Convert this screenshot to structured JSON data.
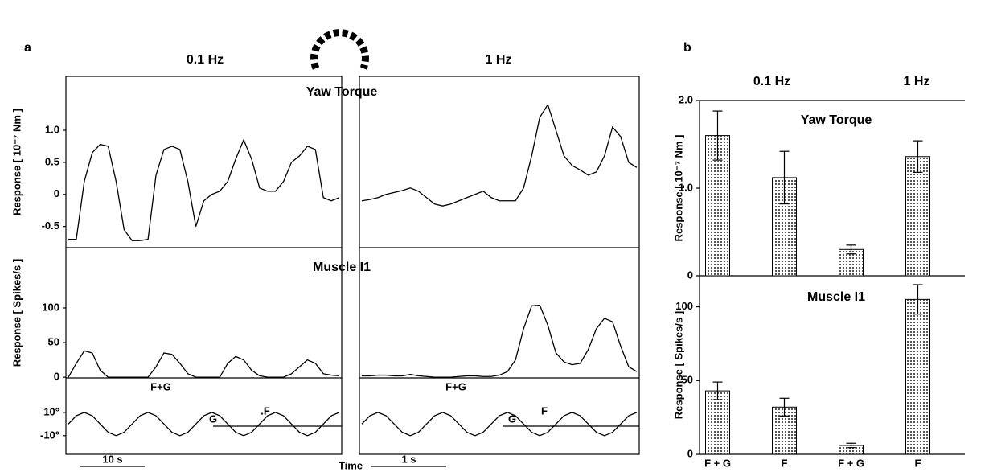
{
  "panels": [
    {
      "label": "a",
      "column_titles": [
        "0.1 Hz",
        "1 Hz"
      ],
      "xlabel": "Time"
    },
    {
      "label": "b",
      "column_titles": [
        "0.1 Hz",
        "1 Hz"
      ]
    }
  ],
  "chart_data": [
    {
      "type": "line",
      "title": "Yaw Torque",
      "ylabel": "Response [ 10⁻⁷ Nm ]",
      "ylim": [
        -0.83,
        1.84
      ],
      "yticks": [
        {
          "value": 1,
          "label": "1.0"
        },
        0.5,
        0,
        -0.5
      ],
      "series": [
        {
          "color": "#000000",
          "values": [
            -0.7,
            -0.7,
            0.2,
            0.65,
            0.78,
            0.75,
            0.2,
            -0.55,
            -0.72,
            -0.72,
            -0.7,
            0.3,
            0.7,
            0.75,
            0.7,
            0.2,
            -0.5,
            -0.1,
            0,
            0.05,
            0.2,
            0.55,
            0.85,
            0.55,
            0.1,
            0.05,
            0.05,
            0.2,
            0.5,
            0.6,
            0.75,
            0.7,
            -0.05,
            -0.1,
            -0.05
          ]
        }
      ]
    },
    {
      "type": "line",
      "ylim": [
        -0.83,
        1.84
      ],
      "series": [
        {
          "color": "#000000",
          "values": [
            -0.1,
            -0.08,
            -0.05,
            0,
            0.03,
            0.06,
            0.1,
            0.05,
            -0.05,
            -0.15,
            -0.18,
            -0.15,
            -0.1,
            -0.05,
            0,
            0.05,
            -0.05,
            -0.1,
            -0.1,
            -0.1,
            0.1,
            0.6,
            1.2,
            1.4,
            1.0,
            0.6,
            0.45,
            0.38,
            0.3,
            0.35,
            0.6,
            1.05,
            0.9,
            0.5,
            0.42
          ]
        }
      ]
    },
    {
      "type": "line",
      "title": "Muscle I1",
      "ylabel": "Response [ Spikes/s ]",
      "ylim": [
        -1,
        187
      ],
      "yticks": [
        100,
        50,
        0
      ],
      "series": [
        {
          "color": "#000000",
          "values": [
            0,
            20,
            38,
            35,
            10,
            0,
            0,
            0,
            0,
            0,
            0,
            15,
            35,
            33,
            20,
            5,
            0,
            0,
            0,
            0,
            20,
            30,
            25,
            10,
            2,
            0,
            0,
            0,
            5,
            15,
            25,
            20,
            5,
            3,
            2
          ]
        }
      ]
    },
    {
      "type": "line",
      "ylim": [
        -1,
        187
      ],
      "series": [
        {
          "color": "#000000",
          "values": [
            2,
            2,
            3,
            3,
            2,
            2,
            4,
            2,
            1,
            0,
            0,
            0,
            1,
            2,
            2,
            1,
            1,
            3,
            8,
            25,
            70,
            103,
            104,
            75,
            35,
            22,
            18,
            20,
            40,
            70,
            85,
            80,
            45,
            15,
            8
          ]
        }
      ]
    },
    {
      "type": "line",
      "ylim": [
        -26,
        39.6
      ],
      "yticks": [
        {
          "value": 10,
          "label": "10°"
        },
        {
          "value": -10,
          "label": "-10°"
        }
      ],
      "annotations": [
        "F+G",
        "G",
        ".F"
      ],
      "scale_bar": "10 s",
      "series": [
        {
          "color": "#000000",
          "values": [
            0,
            7.1,
            10,
            7.1,
            0,
            -7.1,
            -10,
            -7.1,
            0,
            7.1,
            10,
            7.1,
            0,
            -7.1,
            -10,
            -7.1,
            0,
            7.1,
            10,
            7.1,
            0,
            -7.1,
            -10,
            -7.1,
            0,
            7.1,
            10,
            7.1,
            0,
            -7.1,
            -10,
            -7.1,
            0,
            7.1,
            10
          ]
        }
      ]
    },
    {
      "type": "line",
      "ylim": [
        -26,
        39.6
      ],
      "annotations": [
        "F+G",
        "G",
        "F"
      ],
      "scale_bar": "1 s",
      "series": [
        {
          "color": "#000000",
          "values": [
            0,
            7.1,
            10,
            7.1,
            0,
            -7.1,
            -10,
            -7.1,
            0,
            7.1,
            10,
            7.1,
            0,
            -7.1,
            -10,
            -7.1,
            0,
            7.1,
            10,
            7.1,
            0,
            -7.1,
            -10,
            -7.1,
            0,
            7.1,
            10,
            7.1,
            0,
            -7.1,
            -10,
            -7.1,
            0,
            7.1,
            10
          ]
        }
      ]
    },
    {
      "type": "bar",
      "title": "Yaw Torque",
      "ylabel": "Response [ 10⁻⁷ Nm ]",
      "ylim": [
        0,
        2
      ],
      "yticks": [
        {
          "value": 2,
          "label": "2.0"
        },
        {
          "value": 1,
          "label": "1.0"
        },
        0
      ],
      "categories": [
        null,
        null,
        null,
        null
      ],
      "color": "#c8c8c8",
      "values": [
        1.6,
        1.12,
        0.3,
        1.36
      ],
      "errors": [
        0.28,
        0.3,
        0.05,
        0.18
      ]
    },
    {
      "type": "bar",
      "title": "Muscle I1",
      "ylabel": "Response [ Spikes/s ]",
      "ylim": [
        0,
        121
      ],
      "yticks": [
        100,
        50,
        0
      ],
      "categories": [
        "F + G",
        "F",
        "F + G",
        "F"
      ],
      "color": "#c8c8c8",
      "values": [
        43,
        32,
        6,
        105
      ],
      "errors": [
        6,
        6,
        1.5,
        10
      ]
    }
  ]
}
